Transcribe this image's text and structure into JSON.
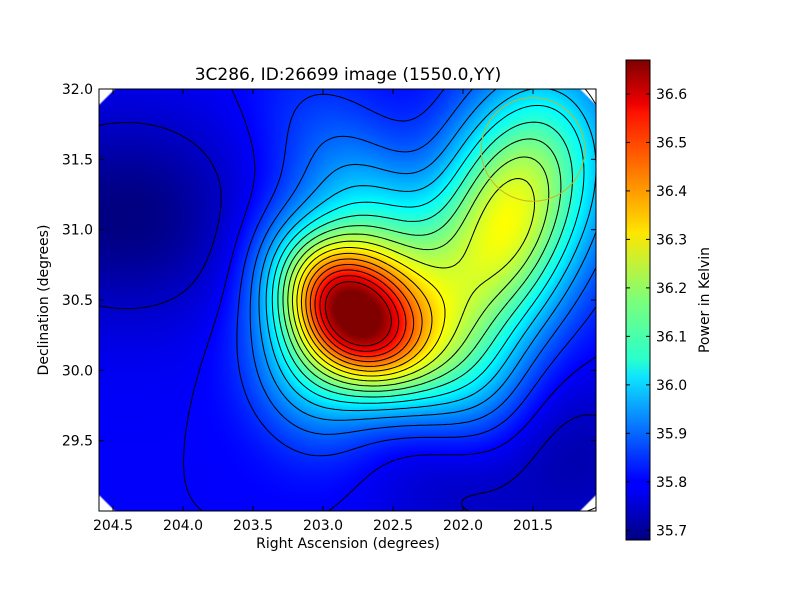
{
  "chart_data": {
    "type": "heatmap",
    "title": "3C286, ID:26699 image (1550.0,YY)",
    "xlabel": "Right Ascension (degrees)",
    "ylabel": "Declination (degrees)",
    "colorbar_label": "Power in Kelvin",
    "colormap": "jet",
    "xlim": [
      204.6,
      201.05
    ],
    "ylim": [
      29.0,
      32.0
    ],
    "x_ticks": [
      204.5,
      204.0,
      203.5,
      203.0,
      202.5,
      202.0,
      201.5
    ],
    "x_tick_labels": [
      "204.5",
      "204.0",
      "203.5",
      "203.0",
      "202.5",
      "202.0",
      "201.5"
    ],
    "y_ticks": [
      29.5,
      30.0,
      30.5,
      31.0,
      31.5,
      32.0
    ],
    "y_tick_labels": [
      "29.5",
      "30.0",
      "30.5",
      "31.0",
      "31.5",
      "32.0"
    ],
    "colorbar_range": [
      35.68,
      36.67
    ],
    "colorbar_ticks": [
      35.7,
      35.8,
      35.9,
      36.0,
      36.1,
      36.2,
      36.3,
      36.4,
      36.5,
      36.6
    ],
    "colorbar_tick_labels": [
      "35.7",
      "35.8",
      "35.9",
      "36.0",
      "36.1",
      "36.2",
      "36.3",
      "36.4",
      "36.5",
      "36.6"
    ],
    "peak": {
      "ra": 202.8,
      "dec": 30.4,
      "value": 36.67
    },
    "background_level": 35.8,
    "contour_levels": [
      35.75,
      35.8,
      35.85,
      35.9,
      35.95,
      36.0,
      36.05,
      36.1,
      36.15,
      36.2,
      36.25,
      36.3,
      36.35,
      36.4,
      36.45,
      36.5,
      36.55,
      36.6
    ],
    "annotation_circle": {
      "ra": 201.5,
      "dec": 31.57,
      "radius_deg": 0.37,
      "color": "#c8b428"
    },
    "grid": false,
    "legend": "none"
  }
}
